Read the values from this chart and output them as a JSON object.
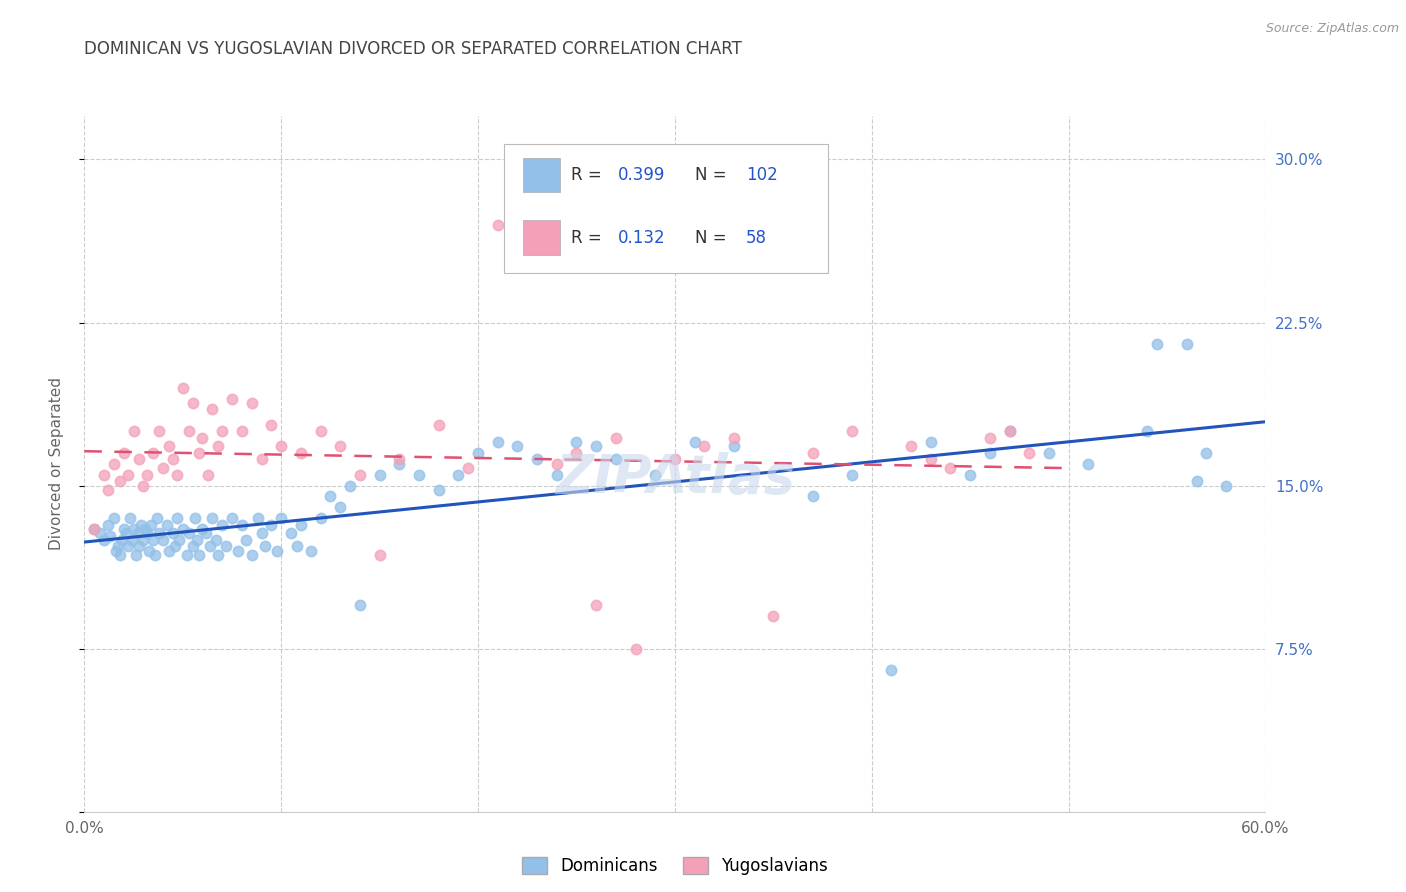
{
  "title": "DOMINICAN VS YUGOSLAVIAN DIVORCED OR SEPARATED CORRELATION CHART",
  "source": "Source: ZipAtlas.com",
  "xlabel_ticks": [
    "0.0%",
    "",
    "",
    "",
    "",
    "",
    "60.0%"
  ],
  "xlabel_vals": [
    0.0,
    0.1,
    0.2,
    0.3,
    0.4,
    0.5,
    0.6
  ],
  "ylabel": "Divorced or Separated",
  "right_ytick_labels": [
    "30.0%",
    "22.5%",
    "15.0%",
    "7.5%"
  ],
  "right_ytick_vals": [
    0.3,
    0.225,
    0.15,
    0.075
  ],
  "xlim": [
    0.0,
    0.6
  ],
  "ylim": [
    0.0,
    0.32
  ],
  "dominicans_color": "#92C0E8",
  "yugoslavians_color": "#F4A0B8",
  "trend_dominicans_color": "#2255BB",
  "trend_yugoslavians_color": "#E05070",
  "watermark": "ZIPAtlas",
  "background_color": "#FFFFFF",
  "grid_color": "#CCCCCC",
  "title_color": "#444444",
  "axis_label_color": "#666666",
  "right_axis_color": "#4472C4",
  "watermark_color": "#C8D8EC",
  "legend_value_color": "#2255CC",
  "dom_x": [
    0.005,
    0.008,
    0.01,
    0.012,
    0.013,
    0.015,
    0.016,
    0.017,
    0.018,
    0.019,
    0.02,
    0.021,
    0.022,
    0.023,
    0.024,
    0.025,
    0.026,
    0.027,
    0.028,
    0.029,
    0.03,
    0.031,
    0.032,
    0.033,
    0.034,
    0.035,
    0.036,
    0.037,
    0.038,
    0.04,
    0.042,
    0.043,
    0.045,
    0.046,
    0.047,
    0.048,
    0.05,
    0.052,
    0.053,
    0.055,
    0.056,
    0.057,
    0.058,
    0.06,
    0.062,
    0.064,
    0.065,
    0.067,
    0.068,
    0.07,
    0.072,
    0.075,
    0.078,
    0.08,
    0.082,
    0.085,
    0.088,
    0.09,
    0.092,
    0.095,
    0.098,
    0.1,
    0.105,
    0.108,
    0.11,
    0.115,
    0.12,
    0.125,
    0.13,
    0.135,
    0.14,
    0.15,
    0.16,
    0.17,
    0.18,
    0.19,
    0.2,
    0.21,
    0.22,
    0.23,
    0.24,
    0.25,
    0.26,
    0.27,
    0.29,
    0.31,
    0.33,
    0.37,
    0.39,
    0.41,
    0.43,
    0.45,
    0.46,
    0.47,
    0.49,
    0.51,
    0.54,
    0.56,
    0.57,
    0.58,
    0.545,
    0.565
  ],
  "dom_y": [
    0.13,
    0.128,
    0.125,
    0.132,
    0.127,
    0.135,
    0.12,
    0.122,
    0.118,
    0.125,
    0.13,
    0.128,
    0.122,
    0.135,
    0.125,
    0.13,
    0.118,
    0.128,
    0.122,
    0.132,
    0.125,
    0.13,
    0.128,
    0.12,
    0.132,
    0.125,
    0.118,
    0.135,
    0.128,
    0.125,
    0.132,
    0.12,
    0.128,
    0.122,
    0.135,
    0.125,
    0.13,
    0.118,
    0.128,
    0.122,
    0.135,
    0.125,
    0.118,
    0.13,
    0.128,
    0.122,
    0.135,
    0.125,
    0.118,
    0.132,
    0.122,
    0.135,
    0.12,
    0.132,
    0.125,
    0.118,
    0.135,
    0.128,
    0.122,
    0.132,
    0.12,
    0.135,
    0.128,
    0.122,
    0.132,
    0.12,
    0.135,
    0.145,
    0.14,
    0.15,
    0.095,
    0.155,
    0.16,
    0.155,
    0.148,
    0.155,
    0.165,
    0.17,
    0.168,
    0.162,
    0.155,
    0.17,
    0.168,
    0.162,
    0.155,
    0.17,
    0.168,
    0.145,
    0.155,
    0.065,
    0.17,
    0.155,
    0.165,
    0.175,
    0.165,
    0.16,
    0.175,
    0.215,
    0.165,
    0.15,
    0.215,
    0.152
  ],
  "yug_x": [
    0.005,
    0.01,
    0.012,
    0.015,
    0.018,
    0.02,
    0.022,
    0.025,
    0.028,
    0.03,
    0.032,
    0.035,
    0.038,
    0.04,
    0.043,
    0.045,
    0.047,
    0.05,
    0.053,
    0.055,
    0.058,
    0.06,
    0.063,
    0.065,
    0.068,
    0.07,
    0.075,
    0.08,
    0.085,
    0.09,
    0.095,
    0.1,
    0.11,
    0.12,
    0.13,
    0.14,
    0.15,
    0.16,
    0.18,
    0.195,
    0.21,
    0.24,
    0.25,
    0.26,
    0.27,
    0.28,
    0.3,
    0.315,
    0.33,
    0.35,
    0.37,
    0.39,
    0.42,
    0.43,
    0.44,
    0.46,
    0.47,
    0.48
  ],
  "yug_y": [
    0.13,
    0.155,
    0.148,
    0.16,
    0.152,
    0.165,
    0.155,
    0.175,
    0.162,
    0.15,
    0.155,
    0.165,
    0.175,
    0.158,
    0.168,
    0.162,
    0.155,
    0.195,
    0.175,
    0.188,
    0.165,
    0.172,
    0.155,
    0.185,
    0.168,
    0.175,
    0.19,
    0.175,
    0.188,
    0.162,
    0.178,
    0.168,
    0.165,
    0.175,
    0.168,
    0.155,
    0.118,
    0.162,
    0.178,
    0.158,
    0.27,
    0.16,
    0.165,
    0.095,
    0.172,
    0.075,
    0.162,
    0.168,
    0.172,
    0.09,
    0.165,
    0.175,
    0.168,
    0.162,
    0.158,
    0.172,
    0.175,
    0.165
  ]
}
